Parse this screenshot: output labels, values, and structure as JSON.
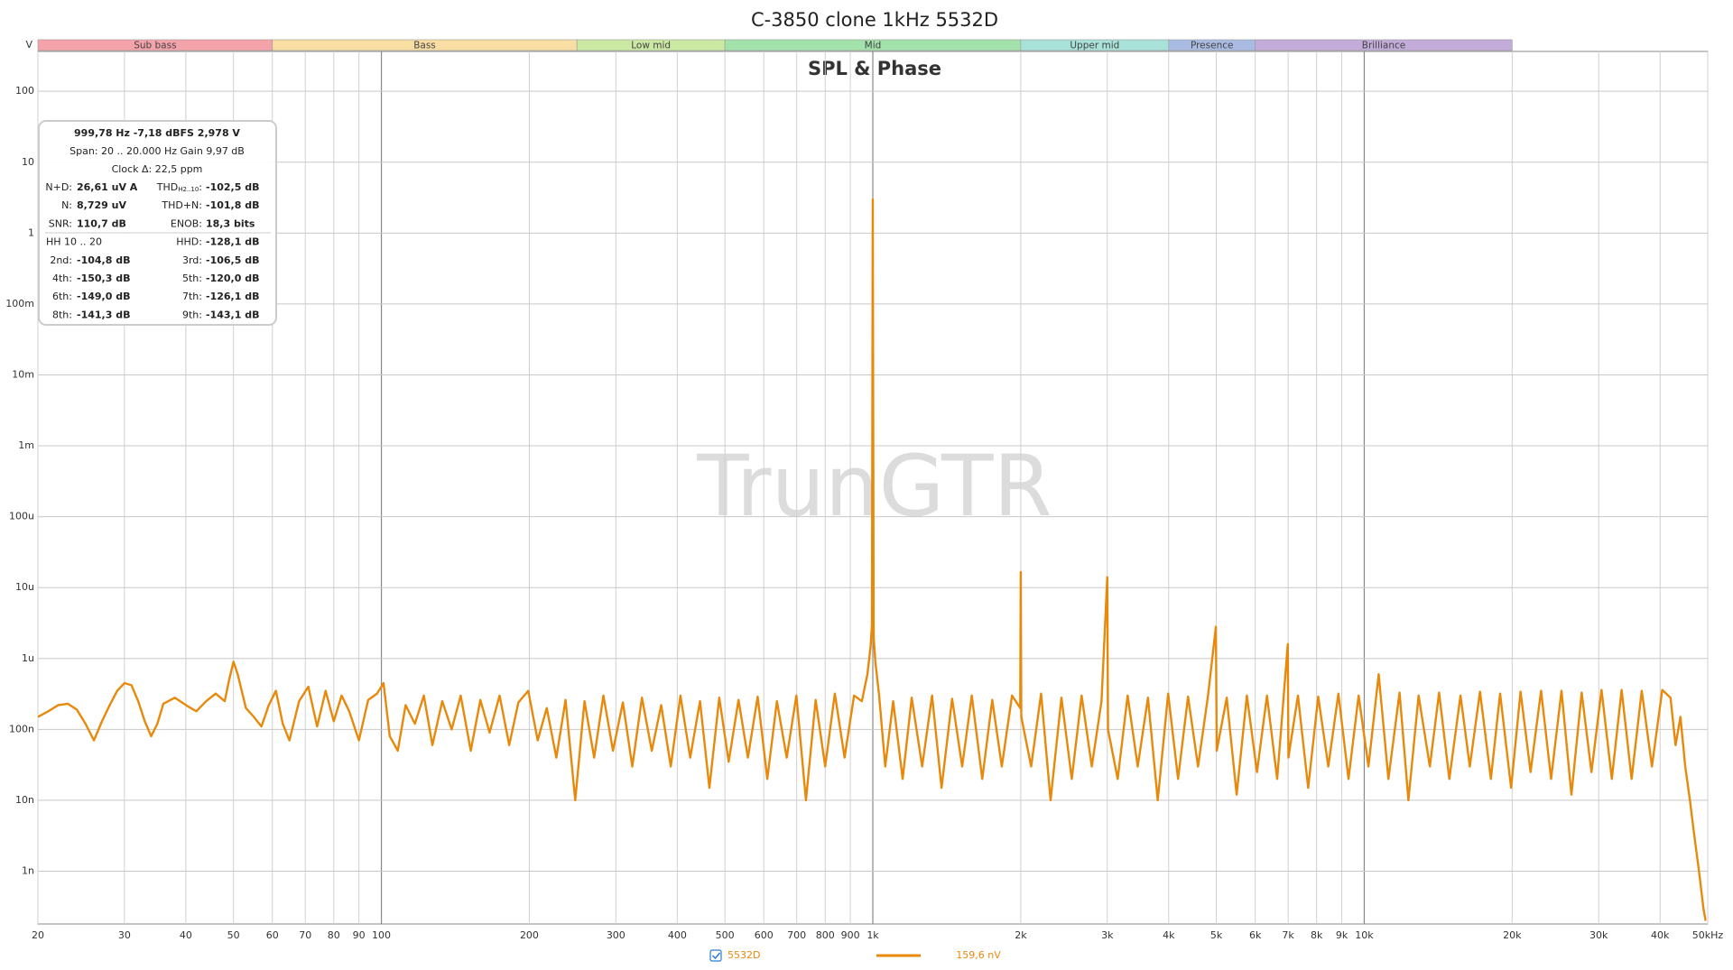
{
  "chart_data": {
    "type": "line",
    "title": "C-3850 clone 1kHz 5532D",
    "subtitle": "SPL & Phase",
    "watermark": "TrunGTR",
    "ylabel": "V",
    "xscale": "log",
    "yscale": "log",
    "grid": true,
    "xlim": [
      20,
      50000
    ],
    "ylim": [
      1.8e-10,
      365
    ],
    "xticks": [
      20,
      30,
      40,
      50,
      60,
      70,
      80,
      90,
      100,
      200,
      300,
      400,
      500,
      600,
      700,
      800,
      900,
      {
        "value": 1000,
        "label": "1k"
      },
      {
        "value": 2000,
        "label": "2k"
      },
      {
        "value": 3000,
        "label": "3k"
      },
      {
        "value": 4000,
        "label": "4k"
      },
      {
        "value": 5000,
        "label": "5k"
      },
      {
        "value": 6000,
        "label": "6k"
      },
      {
        "value": 7000,
        "label": "7k"
      },
      {
        "value": 8000,
        "label": "8k"
      },
      {
        "value": 9000,
        "label": "9k"
      },
      {
        "value": 10000,
        "label": "10k"
      },
      {
        "value": 20000,
        "label": "20k"
      },
      {
        "value": 30000,
        "label": "30k"
      },
      {
        "value": 40000,
        "label": "40k"
      },
      {
        "value": 50000,
        "label": "50kHz"
      }
    ],
    "yticks": [
      100,
      10,
      1,
      {
        "value": 0.1,
        "label": "100m"
      },
      {
        "value": 0.01,
        "label": "10m"
      },
      {
        "value": 0.001,
        "label": "1m"
      },
      {
        "value": 0.0001,
        "label": "100u"
      },
      {
        "value": 1e-05,
        "label": "10u"
      },
      {
        "value": 1e-06,
        "label": "1u"
      },
      {
        "value": 1e-07,
        "label": "100n"
      },
      {
        "value": 1e-08,
        "label": "10n"
      },
      {
        "value": 1e-09,
        "label": "1n"
      }
    ],
    "bands": [
      {
        "name": "Sub bass",
        "range": [
          20,
          60
        ],
        "color": "#f4a3ab"
      },
      {
        "name": "Bass",
        "range": [
          60,
          250
        ],
        "color": "#f9dea3"
      },
      {
        "name": "Low mid",
        "range": [
          250,
          500
        ],
        "color": "#cbe9a3"
      },
      {
        "name": "Mid",
        "range": [
          500,
          2000
        ],
        "color": "#a3e2ab"
      },
      {
        "name": "Upper mid",
        "range": [
          2000,
          4000
        ],
        "color": "#a8e2d9"
      },
      {
        "name": "Presence",
        "range": [
          4000,
          6000
        ],
        "color": "#aabbe3"
      },
      {
        "name": "Brilliance",
        "range": [
          6000,
          20000
        ],
        "color": "#c3abda"
      }
    ],
    "x": [
      20,
      21,
      22,
      23,
      24,
      25,
      26,
      27,
      28,
      29,
      30,
      31,
      32,
      33,
      34,
      35,
      36,
      38,
      40,
      42,
      44,
      46,
      48,
      49,
      50,
      51,
      53,
      55,
      57,
      59,
      61,
      63,
      65,
      68,
      71,
      74,
      77,
      80,
      83,
      86,
      90,
      94,
      98,
      101,
      104,
      108,
      112,
      117,
      122,
      127,
      133,
      139,
      145,
      152,
      159,
      166,
      174,
      182,
      190,
      199,
      208,
      217,
      227,
      237,
      248,
      259,
      271,
      283,
      296,
      310,
      324,
      339,
      355,
      371,
      388,
      406,
      425,
      445,
      465,
      487,
      509,
      533,
      557,
      583,
      610,
      638,
      668,
      699,
      731,
      765,
      800,
      837,
      876,
      916,
      950,
      975,
      990,
      996,
      999.78,
      1004,
      1012,
      1030,
      1060,
      1100,
      1150,
      1200,
      1260,
      1320,
      1380,
      1450,
      1520,
      1590,
      1670,
      1750,
      1830,
      1920,
      1995,
      2000,
      2005,
      2100,
      2200,
      2300,
      2420,
      2540,
      2660,
      2790,
      2920,
      3000,
      3010,
      3150,
      3300,
      3460,
      3630,
      3800,
      3990,
      4180,
      4380,
      4590,
      4810,
      4990,
      5010,
      5250,
      5500,
      5770,
      6050,
      6340,
      6650,
      6990,
      7010,
      7330,
      7690,
      8060,
      8450,
      8860,
      9290,
      9740,
      10200,
      10700,
      11200,
      11800,
      12300,
      12900,
      13600,
      14200,
      14900,
      15700,
      16400,
      17200,
      18100,
      18900,
      19900,
      20800,
      21800,
      22900,
      24000,
      25200,
      26400,
      27700,
      29000,
      30400,
      31900,
      33400,
      35000,
      36700,
      38500,
      40400,
      42000,
      43000,
      44000,
      45000,
      46000,
      47000,
      48000,
      49000,
      49500
    ],
    "series": [
      {
        "name": "5532D",
        "color": "#e8890c",
        "cursor_value": "159,6 nV",
        "values": [
          1.5e-07,
          1.8e-07,
          2.2e-07,
          2.3e-07,
          1.9e-07,
          1.2e-07,
          7e-08,
          1.3e-07,
          2.2e-07,
          3.5e-07,
          4.5e-07,
          4.2e-07,
          2.5e-07,
          1.3e-07,
          8e-08,
          1.2e-07,
          2.3e-07,
          2.8e-07,
          2.2e-07,
          1.8e-07,
          2.5e-07,
          3.2e-07,
          2.5e-07,
          5e-07,
          9e-07,
          6e-07,
          2e-07,
          1.5e-07,
          1.1e-07,
          2.2e-07,
          3.5e-07,
          1.2e-07,
          7e-08,
          2.5e-07,
          4e-07,
          1.1e-07,
          3.5e-07,
          1.3e-07,
          3e-07,
          1.8e-07,
          7e-08,
          2.6e-07,
          3.2e-07,
          4.5e-07,
          8e-08,
          5e-08,
          2.2e-07,
          1.2e-07,
          3e-07,
          6e-08,
          2.5e-07,
          1e-07,
          3e-07,
          5e-08,
          2.6e-07,
          9e-08,
          3e-07,
          6e-08,
          2.4e-07,
          3.5e-07,
          7e-08,
          2e-07,
          4e-08,
          2.6e-07,
          1e-08,
          2.5e-07,
          4e-08,
          3e-07,
          5e-08,
          2.4e-07,
          3e-08,
          2.8e-07,
          5e-08,
          2.2e-07,
          3e-08,
          3e-07,
          4e-08,
          2.5e-07,
          1.5e-08,
          2.8e-07,
          3.5e-08,
          2.6e-07,
          4e-08,
          2.9e-07,
          2e-08,
          2.5e-07,
          4e-08,
          3e-07,
          1e-08,
          2.6e-07,
          3e-08,
          3.2e-07,
          4e-08,
          3e-07,
          2.5e-07,
          6e-07,
          1.5e-06,
          3e-06,
          2.978,
          2e-06,
          9e-07,
          3e-07,
          3e-08,
          2.5e-07,
          2e-08,
          2.8e-07,
          3e-08,
          3e-07,
          1.5e-08,
          2.7e-07,
          3e-08,
          3e-07,
          2e-08,
          2.6e-07,
          3e-08,
          3e-07,
          2e-07,
          1.66e-05,
          1.5e-07,
          3e-08,
          3.2e-07,
          1e-08,
          2.8e-07,
          2e-08,
          3e-07,
          3e-08,
          2.5e-07,
          1.4e-05,
          1e-07,
          2e-08,
          3e-07,
          3e-08,
          2.8e-07,
          1e-08,
          3.2e-07,
          2e-08,
          2.9e-07,
          3e-08,
          3e-07,
          2.8e-06,
          5e-08,
          2.8e-07,
          1.2e-08,
          3e-07,
          2.5e-08,
          3e-07,
          2e-08,
          1.6e-06,
          4e-08,
          3e-07,
          1.5e-08,
          2.9e-07,
          3e-08,
          3.2e-07,
          2e-08,
          3e-07,
          3e-08,
          6e-07,
          2e-08,
          3.3e-07,
          1e-08,
          3e-07,
          3e-08,
          3.3e-07,
          2e-08,
          3e-07,
          3e-08,
          3.4e-07,
          2e-08,
          3.2e-07,
          1.5e-08,
          3.4e-07,
          2.5e-08,
          3.5e-07,
          2e-08,
          3.5e-07,
          1.2e-08,
          3.3e-07,
          2.5e-08,
          3.6e-07,
          2e-08,
          3.6e-07,
          2e-08,
          3.5e-07,
          3e-08,
          3.6e-07,
          2.8e-07,
          6e-08,
          1.5e-07,
          3e-08,
          1e-08,
          3e-09,
          1e-09,
          3e-10,
          2e-10
        ]
      }
    ],
    "info": {
      "header": [
        "999,78 Hz  -7,18 dBFS  2,978 V",
        "Span: 20 .. 20.000 Hz   Gain 9,97 dB",
        "Clock Δ: 22,5 ppm"
      ],
      "rows": [
        [
          {
            "label": "N+D:",
            "value": "26,61 uV A"
          },
          {
            "label": "THD",
            "sub": "H2..10",
            "label_end": ":",
            "value": "-102,5 dB"
          }
        ],
        [
          {
            "label": "N:",
            "value": "8,729 uV"
          },
          {
            "label": "THD+N:",
            "value": "-101,8 dB"
          }
        ],
        [
          {
            "label": "SNR:",
            "value": "110,7 dB"
          },
          {
            "label": "ENOB:",
            "value": "18,3 bits"
          }
        ],
        [
          {
            "label": "HH 10 .. 20"
          },
          {
            "label": "HHD:",
            "value": "-128,1 dB"
          }
        ],
        [
          {
            "label": "2nd:",
            "value": "-104,8 dB"
          },
          {
            "label": "3rd:",
            "value": "-106,5 dB"
          }
        ],
        [
          {
            "label": "4th:",
            "value": "-150,3 dB"
          },
          {
            "label": "5th:",
            "value": "-120,0 dB"
          }
        ],
        [
          {
            "label": "6th:",
            "value": "-149,0 dB"
          },
          {
            "label": "7th:",
            "value": "-126,1 dB"
          }
        ],
        [
          {
            "label": "8th:",
            "value": "-141,3 dB"
          },
          {
            "label": "9th:",
            "value": "-143,1 dB"
          }
        ]
      ]
    }
  }
}
